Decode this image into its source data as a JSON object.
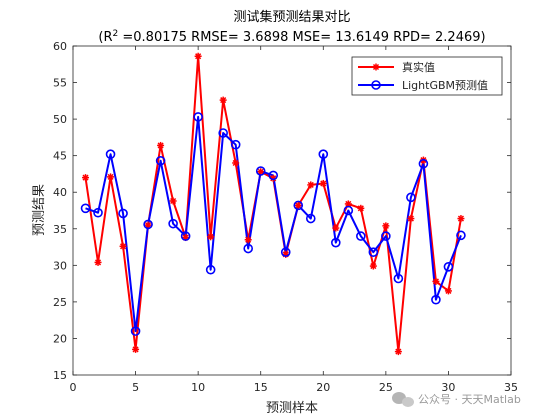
{
  "chart_data": {
    "type": "line",
    "title": "测试集预测结果对比",
    "subtitle_parts": [
      "(R",
      "2",
      " =0.80175 RMSE= 3.6898 MSE= 13.6149 RPD= 2.2469)"
    ],
    "xlabel": "预测样本",
    "ylabel": "预测结果",
    "xlim": [
      0,
      35
    ],
    "ylim": [
      15,
      60
    ],
    "xticks": [
      0,
      5,
      10,
      15,
      20,
      25,
      30,
      35
    ],
    "yticks": [
      15,
      20,
      25,
      30,
      35,
      40,
      45,
      50,
      55,
      60
    ],
    "grid": false,
    "legend_position": "top-right",
    "x": [
      1,
      2,
      3,
      4,
      5,
      6,
      7,
      8,
      9,
      10,
      11,
      12,
      13,
      14,
      15,
      16,
      17,
      18,
      19,
      20,
      21,
      22,
      23,
      24,
      25,
      26,
      27,
      28,
      29,
      30,
      31
    ],
    "series": [
      {
        "name": "真实值",
        "color": "#ff0000",
        "marker": "star",
        "values": [
          42.0,
          30.4,
          42.1,
          32.6,
          18.5,
          35.5,
          46.4,
          38.8,
          33.8,
          58.6,
          33.9,
          52.6,
          44.0,
          33.5,
          42.8,
          41.9,
          31.5,
          38.2,
          41.0,
          41.2,
          35.1,
          38.4,
          37.8,
          29.9,
          35.4,
          18.2,
          36.4,
          44.4,
          27.8,
          26.5,
          36.4
        ]
      },
      {
        "name": "LightGBM预测值",
        "color": "#0000ff",
        "marker": "circle",
        "values": [
          37.8,
          37.2,
          45.2,
          37.1,
          21.0,
          35.6,
          44.3,
          35.7,
          34.0,
          50.3,
          29.4,
          48.1,
          46.5,
          32.3,
          42.9,
          42.3,
          31.8,
          38.2,
          36.4,
          45.2,
          33.1,
          37.5,
          34.0,
          31.8,
          34.0,
          28.2,
          39.3,
          43.9,
          25.3,
          29.8,
          34.1
        ]
      }
    ]
  },
  "watermark": {
    "icon": "wechat-icon",
    "text": "公众号 · 天天Matlab"
  }
}
